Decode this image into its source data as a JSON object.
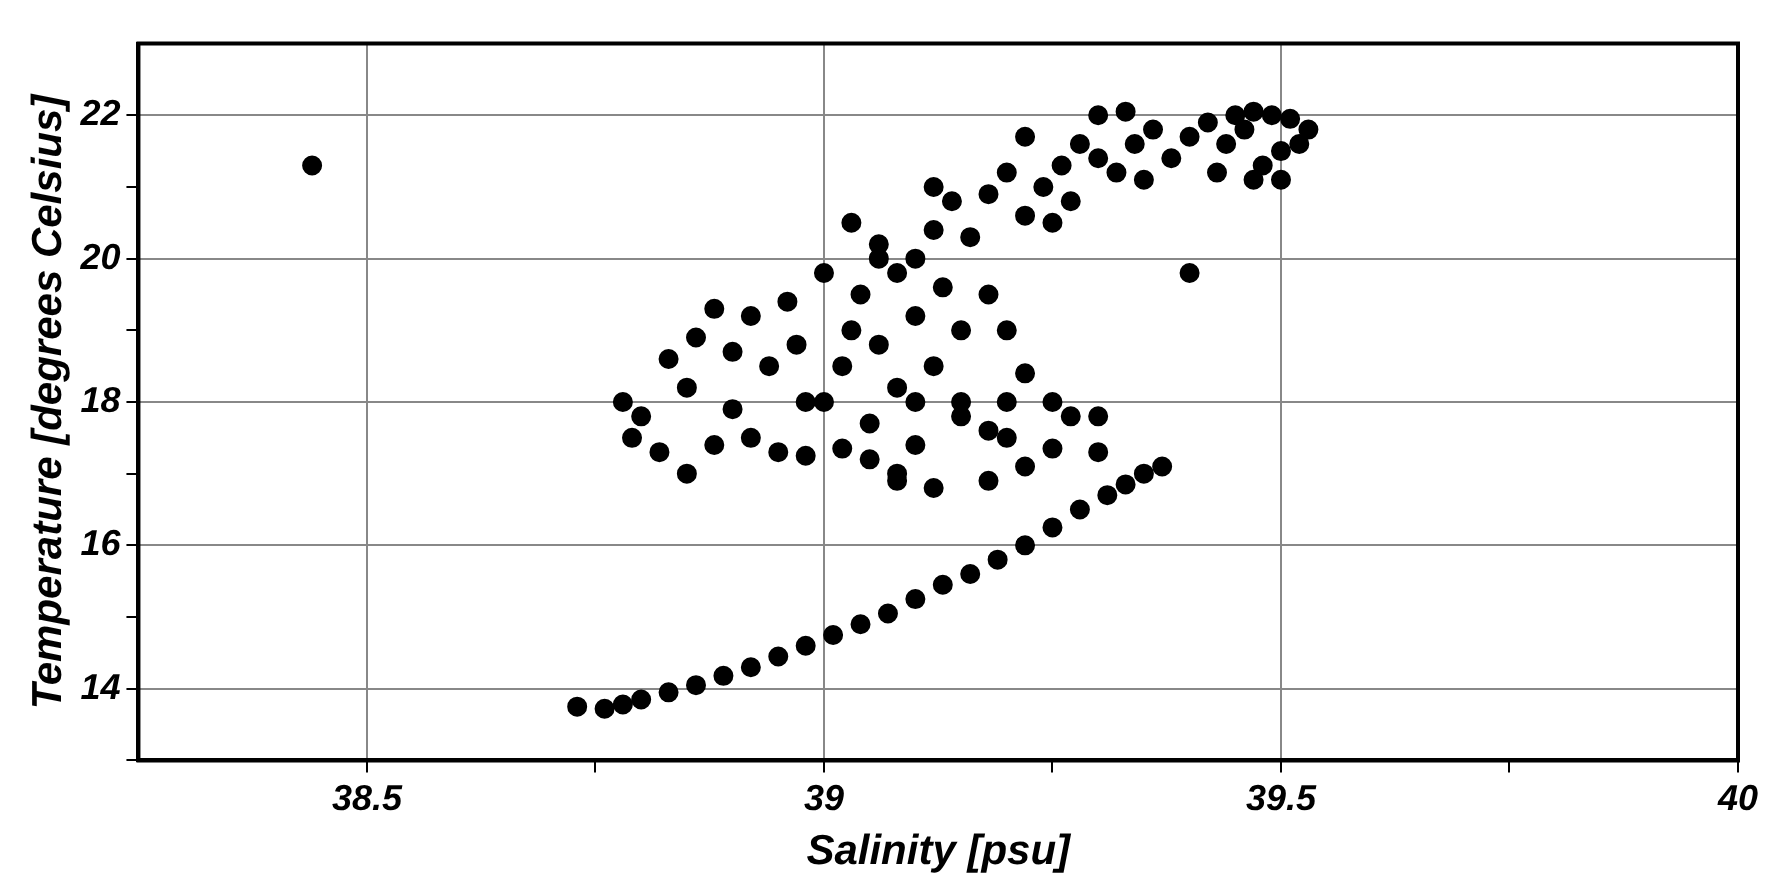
{
  "chart_data": {
    "type": "scatter",
    "xlabel": "Salinity [psu]",
    "ylabel": "Temperature [degrees Celsius]",
    "xlim": [
      38.25,
      40
    ],
    "ylim": [
      13,
      23
    ],
    "xticks": [
      38.5,
      {
        "value": 38.75,
        "label": null
      },
      39,
      {
        "value": 39.25,
        "label": null
      },
      39.5,
      {
        "value": 39.75,
        "label": null
      },
      40
    ],
    "yticks": [
      {
        "value": 13,
        "label": null
      },
      14,
      {
        "value": 15,
        "label": null
      },
      16,
      {
        "value": 17,
        "label": null
      },
      18,
      {
        "value": 19,
        "label": null
      },
      20,
      {
        "value": 21,
        "label": null
      },
      22
    ],
    "grid": true,
    "marker": "circle",
    "series": [
      {
        "color": "#000000",
        "x": [
          38.73,
          38.76,
          38.78,
          38.8,
          38.83,
          38.86,
          38.89,
          38.92,
          38.95,
          38.98,
          39.01,
          39.04,
          39.07,
          39.1,
          39.13,
          39.16,
          39.19,
          39.22,
          39.25,
          39.28,
          39.31,
          39.33,
          39.35,
          39.37,
          39.3,
          39.25,
          39.2,
          39.15,
          39.1,
          39.22,
          39.18,
          39.12,
          39.08,
          39.05,
          39.02,
          38.78,
          38.8,
          38.79,
          38.82,
          38.85,
          38.83,
          38.86,
          38.88,
          38.92,
          38.9,
          38.94,
          38.96,
          38.98,
          38.92,
          38.95,
          38.98,
          38.88,
          38.85,
          38.9,
          38.97,
          39.0,
          39.02,
          39.03,
          39.04,
          39.06,
          39.08,
          39.05,
          39.1,
          39.12,
          39.1,
          39.13,
          39.15,
          39.18,
          39.2,
          39.22,
          39.25,
          39.27,
          39.3,
          39.03,
          39.06,
          39.0,
          39.15,
          39.18,
          39.2,
          39.08,
          39.06,
          39.1,
          39.12,
          39.14,
          39.16,
          39.18,
          39.2,
          39.22,
          39.24,
          39.26,
          39.28,
          39.3,
          39.32,
          39.34,
          39.36,
          39.38,
          39.4,
          39.42,
          39.25,
          39.27,
          39.22,
          39.3,
          39.33,
          39.35,
          39.4,
          39.12,
          39.08,
          39.44,
          39.45,
          39.47,
          39.49,
          39.51,
          39.53,
          39.5,
          39.48,
          39.5,
          39.47,
          39.52,
          39.46,
          39.43,
          38.44
        ],
        "values": [
          13.75,
          13.72,
          13.78,
          13.85,
          13.95,
          14.05,
          14.18,
          14.3,
          14.45,
          14.6,
          14.75,
          14.9,
          15.05,
          15.25,
          15.45,
          15.6,
          15.8,
          16.0,
          16.25,
          16.5,
          16.7,
          16.85,
          17.0,
          17.1,
          17.3,
          17.35,
          17.5,
          17.8,
          17.4,
          17.1,
          16.9,
          16.8,
          16.9,
          17.2,
          17.35,
          18.0,
          17.8,
          17.5,
          17.3,
          18.2,
          18.6,
          18.9,
          19.3,
          19.2,
          18.7,
          18.5,
          19.4,
          18.0,
          17.5,
          17.3,
          17.25,
          17.4,
          17.0,
          17.9,
          18.8,
          18.0,
          18.5,
          19.0,
          19.5,
          18.8,
          18.2,
          17.7,
          18.0,
          18.5,
          19.2,
          19.6,
          18.0,
          17.6,
          18.0,
          18.4,
          18.0,
          17.8,
          17.8,
          20.5,
          20.0,
          19.8,
          19.0,
          19.5,
          19.0,
          17.0,
          20.2,
          20.0,
          20.4,
          20.8,
          20.3,
          20.9,
          21.2,
          20.6,
          21.0,
          21.3,
          21.6,
          21.4,
          21.2,
          21.6,
          21.8,
          21.4,
          21.7,
          21.9,
          20.5,
          20.8,
          21.7,
          22.0,
          22.05,
          21.1,
          19.8,
          21.0,
          19.8,
          21.6,
          22.0,
          22.05,
          22.0,
          21.95,
          21.8,
          21.5,
          21.3,
          21.1,
          21.1,
          21.6,
          21.8,
          21.2,
          21.3
        ]
      }
    ]
  }
}
